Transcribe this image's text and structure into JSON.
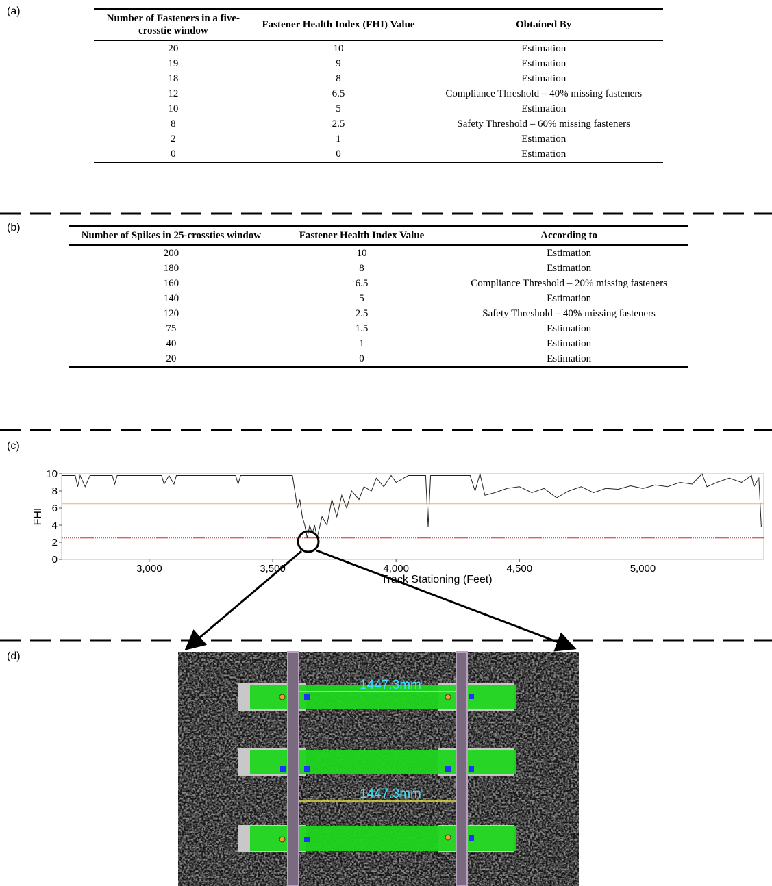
{
  "table_a": {
    "label": "(a)",
    "columns": [
      "Number of Fasteners in a five-crosstie window",
      "Fastener Health Index (FHI) Value",
      "Obtained By"
    ],
    "rows": [
      [
        "20",
        "10",
        "Estimation"
      ],
      [
        "19",
        "9",
        "Estimation"
      ],
      [
        "18",
        "8",
        "Estimation"
      ],
      [
        "12",
        "6.5",
        "Compliance Threshold – 40% missing fasteners"
      ],
      [
        "10",
        "5",
        "Estimation"
      ],
      [
        "8",
        "2.5",
        "Safety Threshold – 60% missing fasteners"
      ],
      [
        "2",
        "1",
        "Estimation"
      ],
      [
        "0",
        "0",
        "Estimation"
      ]
    ]
  },
  "table_b": {
    "label": "(b)",
    "columns": [
      "Number of Spikes in 25-crossties window",
      "Fastener Health Index Value",
      "According to"
    ],
    "rows": [
      [
        "200",
        "10",
        "Estimation"
      ],
      [
        "180",
        "8",
        "Estimation"
      ],
      [
        "160",
        "6.5",
        "Compliance Threshold – 20% missing fasteners"
      ],
      [
        "140",
        "5",
        "Estimation"
      ],
      [
        "120",
        "2.5",
        "Safety Threshold – 40% missing fasteners"
      ],
      [
        "75",
        "1.5",
        "Estimation"
      ],
      [
        "40",
        "1",
        "Estimation"
      ],
      [
        "20",
        "0",
        "Estimation"
      ]
    ]
  },
  "chart_data": {
    "type": "line",
    "label": "(c)",
    "xlabel": "Track Stationing (Feet)",
    "ylabel": "FHI",
    "x": [
      2645,
      2700,
      2710,
      2720,
      2740,
      2760,
      2850,
      2860,
      2870,
      3050,
      3060,
      3080,
      3100,
      3110,
      3350,
      3360,
      3370,
      3580,
      3590,
      3600,
      3610,
      3620,
      3630,
      3640,
      3650,
      3660,
      3670,
      3680,
      3700,
      3720,
      3740,
      3760,
      3780,
      3800,
      3820,
      3850,
      3870,
      3900,
      3920,
      3950,
      3980,
      4000,
      4050,
      4120,
      4130,
      4140,
      4300,
      4320,
      4340,
      4360,
      4400,
      4450,
      4500,
      4550,
      4600,
      4650,
      4700,
      4750,
      4800,
      4850,
      4900,
      4950,
      5000,
      5050,
      5100,
      5150,
      5200,
      5240,
      5260,
      5300,
      5350,
      5400,
      5440,
      5450,
      5470,
      5480
    ],
    "values": [
      9.8,
      9.8,
      8.5,
      9.8,
      8.5,
      9.8,
      9.8,
      8.8,
      9.8,
      9.8,
      8.8,
      9.8,
      8.8,
      9.8,
      9.8,
      8.8,
      9.8,
      9.8,
      8,
      6,
      7,
      5,
      4,
      2.5,
      4,
      3,
      4,
      2.5,
      5,
      4,
      7,
      5,
      7.5,
      6,
      8,
      7,
      8.5,
      8,
      9.5,
      8.5,
      9.8,
      9,
      9.8,
      9.8,
      3.8,
      9.8,
      9.8,
      8,
      10,
      7.5,
      7.8,
      8.3,
      8.5,
      7.8,
      8.3,
      7.2,
      8,
      8.5,
      7.8,
      8.3,
      8.2,
      8.6,
      8.3,
      8.7,
      8.5,
      9,
      8.8,
      10,
      8.5,
      9,
      9.5,
      9,
      9.8,
      8.5,
      9.5,
      3.8
    ],
    "color": "#222222",
    "thresholds": [
      {
        "value": 6.5,
        "color": "#f0b060"
      },
      {
        "value": 2.5,
        "color": "#e02020"
      }
    ],
    "xlim": [
      2645,
      5490
    ],
    "ylim": [
      0,
      10
    ],
    "xticks": [
      {
        "value": 3000,
        "label": "3,000"
      },
      {
        "value": 3500,
        "label": "3,500"
      },
      {
        "value": 4000,
        "label": "4,000"
      },
      {
        "value": 4500,
        "label": "4,500"
      },
      {
        "value": 5000,
        "label": "5,000"
      }
    ],
    "yticks": [
      0,
      2,
      4,
      6,
      8,
      10
    ]
  },
  "image": {
    "label": "(d)",
    "measurements": [
      "1447.3mm",
      "1447.3mm"
    ]
  }
}
